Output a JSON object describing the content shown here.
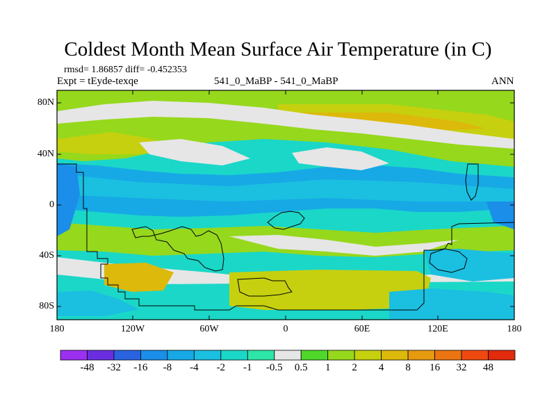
{
  "title": "Coldest Month Mean Surface Air Temperature (in C)",
  "stats_line": "rmsd= 1.86857 diff= -0.452353",
  "experiment_line": "Expt = tEyde-texqe",
  "center_label": "541_0_MaBP - 541_0_MaBP",
  "season": "ANN",
  "map": {
    "lat_labels": [
      "80N",
      "40N",
      "0",
      "40S",
      "80S"
    ],
    "lon_labels": [
      "180",
      "120W",
      "60W",
      "0",
      "60E",
      "120E",
      "180"
    ]
  },
  "colorbar": {
    "labels": [
      "-48",
      "-32",
      "-16",
      "-8",
      "-4",
      "-2",
      "-1",
      "-0.5",
      "0.5",
      "1",
      "2",
      "4",
      "8",
      "16",
      "32",
      "48"
    ],
    "colors": [
      "#9b30f0",
      "#6a2ee0",
      "#2a63e0",
      "#1a8ee8",
      "#16a9e6",
      "#1bbfe0",
      "#1bd7c8",
      "#2ee6a8",
      "#e6e6e6",
      "#4fd82a",
      "#96d81c",
      "#c6d00f",
      "#dcb90a",
      "#e69a10",
      "#ec7512",
      "#ee4a10",
      "#e22a0c"
    ]
  },
  "palette": {
    "deep_blue": "#2a63e0",
    "blue": "#1a8ee8",
    "cyan": "#1bbfe0",
    "teal": "#1bd7c8",
    "white": "#e6e6e6",
    "green": "#4fd82a",
    "lime": "#96d81c",
    "olive": "#c6d00f",
    "gold": "#dcb90a",
    "orange": "#e69a10"
  }
}
